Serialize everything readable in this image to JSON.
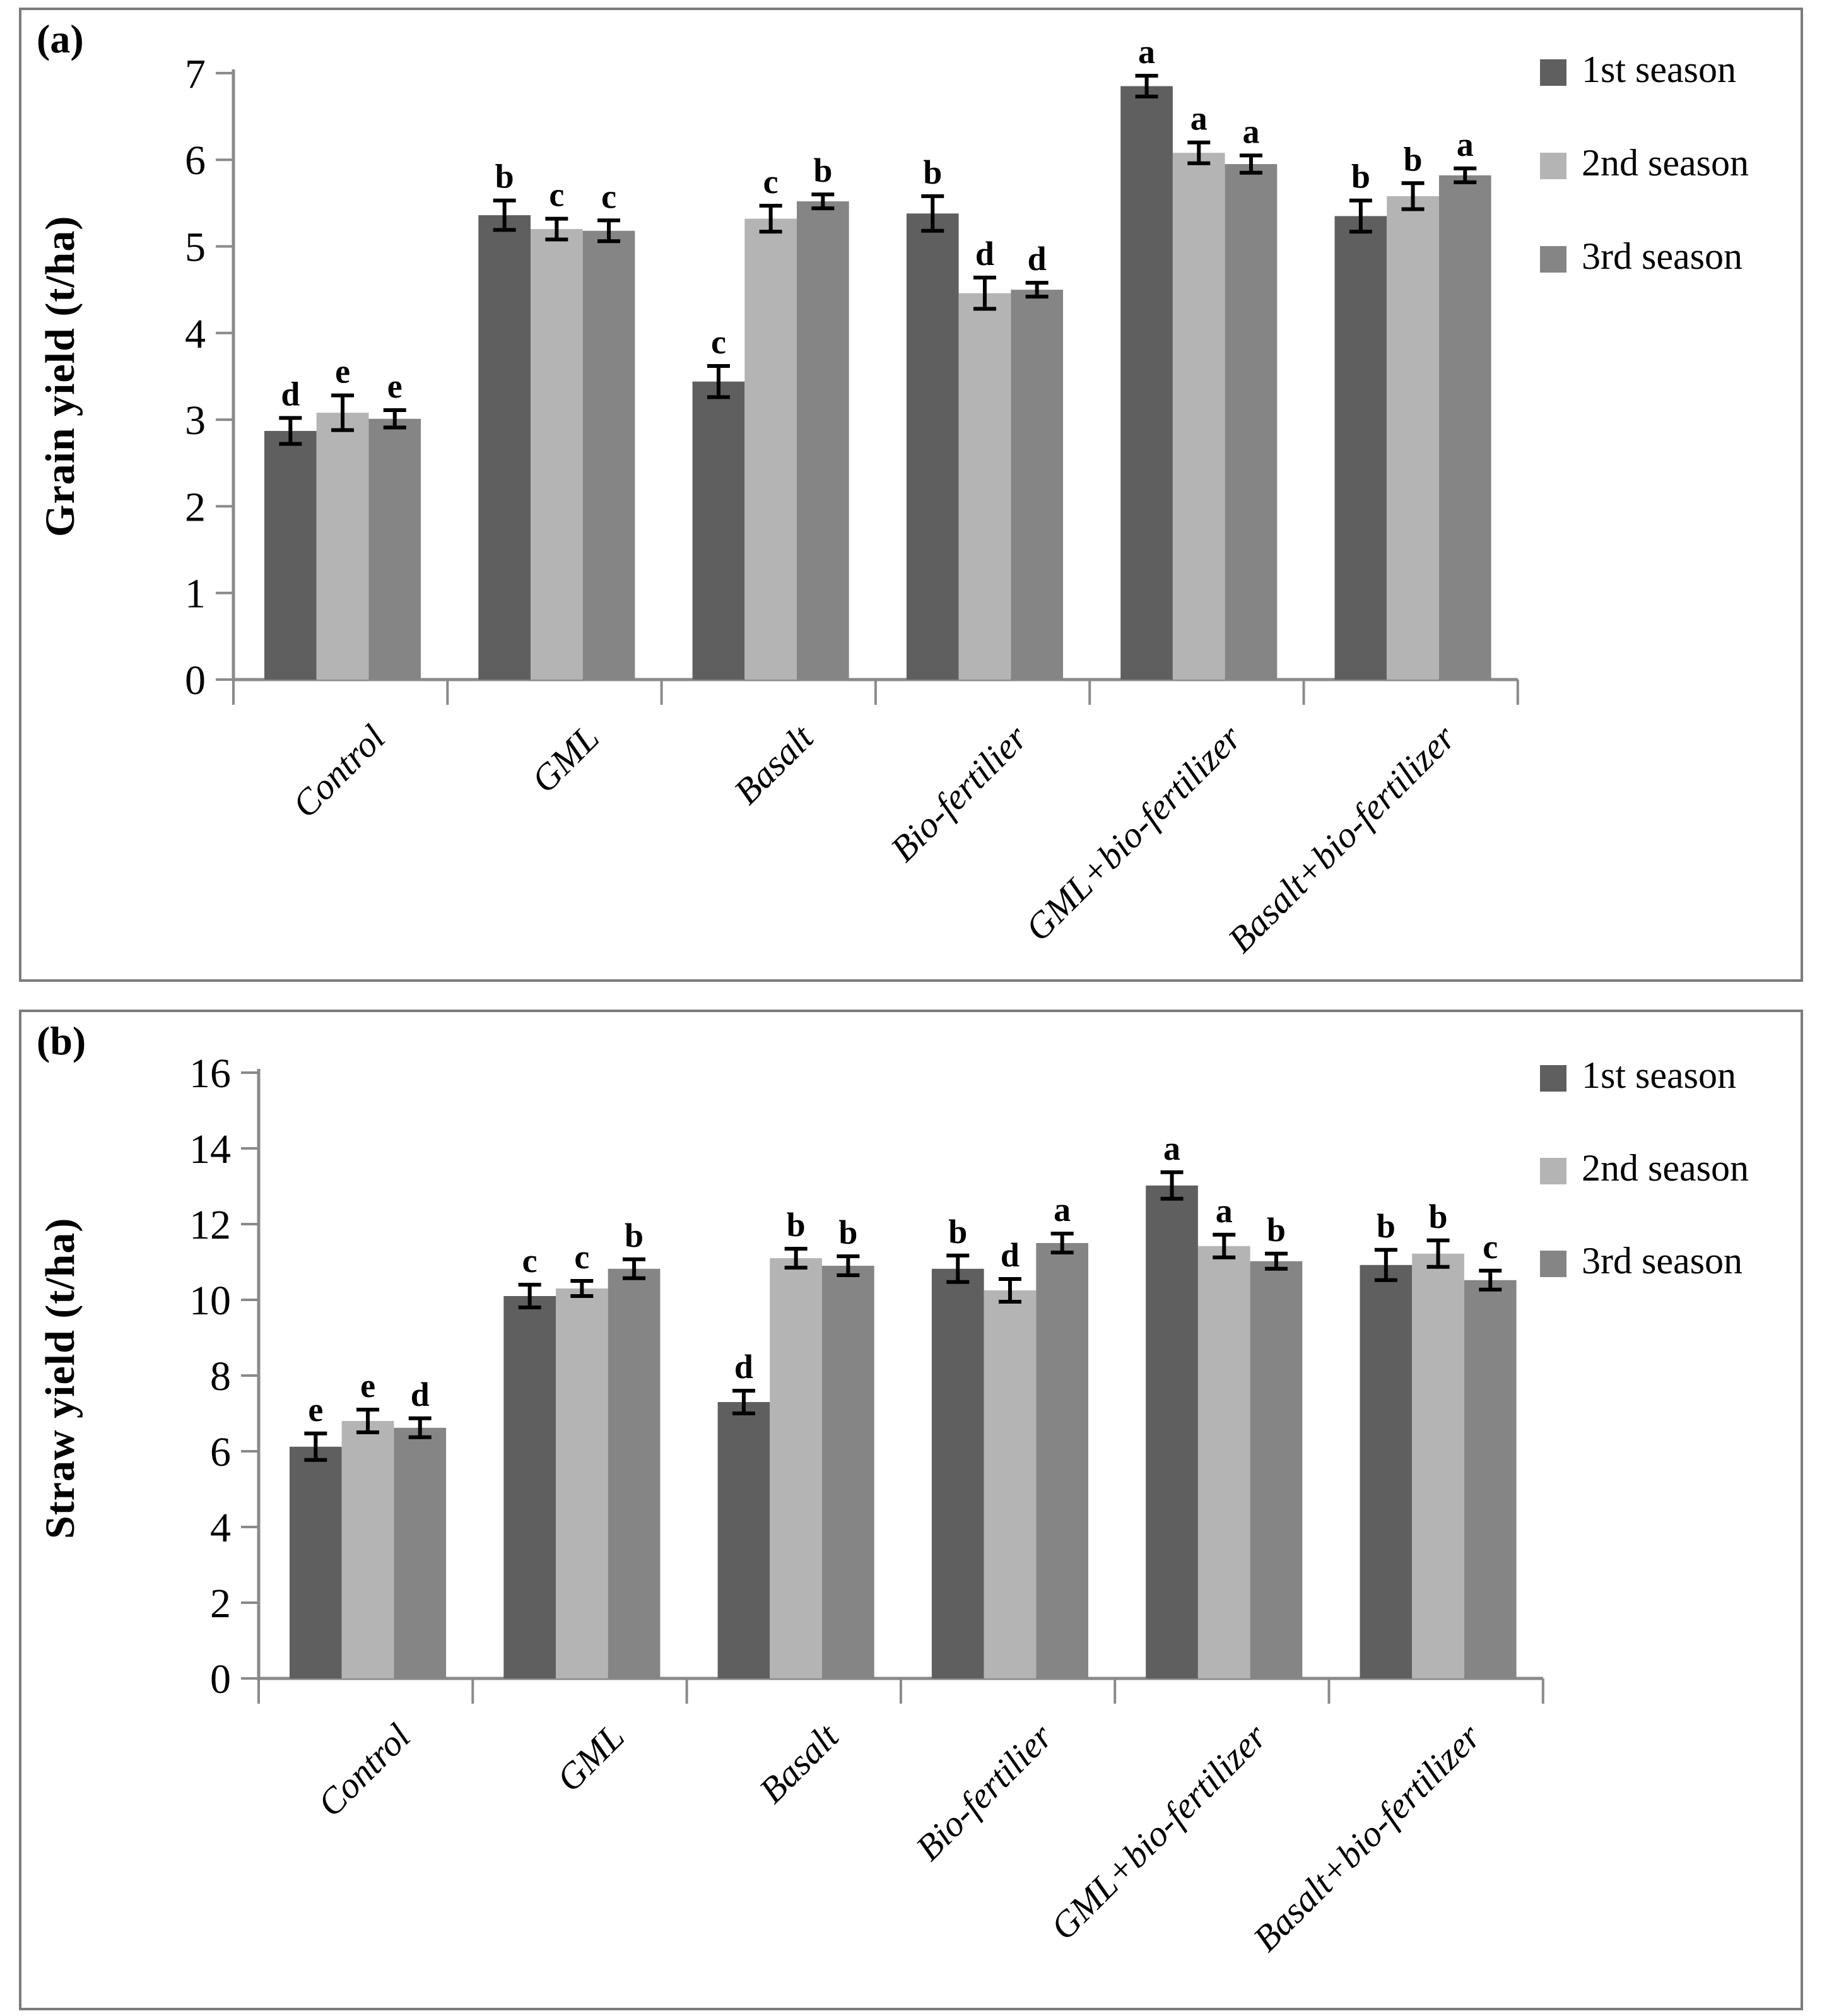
{
  "figure": {
    "panel_count": 2,
    "background": "#ffffff",
    "border_color": "#7b7b7b"
  },
  "chart_data": [
    {
      "type": "bar",
      "panel_label": "(a)",
      "title": "",
      "xlabel": "",
      "ylabel": "Grain yield (t/ha)",
      "ylim": [
        0,
        7
      ],
      "ytick_step": 1,
      "ytick_labels": [
        "0",
        "1",
        "2",
        "3",
        "4",
        "5",
        "6",
        "7"
      ],
      "grid": false,
      "legend_position": "top-right",
      "axis_color": "#8a8a8a",
      "error_bar_color": "#000000",
      "categories": [
        "Control",
        "GML",
        "Basalt",
        "Bio-fertilier",
        "GML+bio-fertilizer",
        "Basalt+bio-fertilizer"
      ],
      "series": [
        {
          "name": "1st season",
          "color": "#5f5f5f",
          "values": [
            2.87,
            5.36,
            3.44,
            5.38,
            6.85,
            5.35
          ],
          "errors": [
            0.15,
            0.17,
            0.18,
            0.2,
            0.12,
            0.18
          ],
          "letters": [
            "d",
            "b",
            "c",
            "b",
            "a",
            "b"
          ]
        },
        {
          "name": "2nd season",
          "color": "#b4b4b4",
          "values": [
            3.08,
            5.2,
            5.32,
            4.46,
            6.08,
            5.58
          ],
          "errors": [
            0.2,
            0.12,
            0.15,
            0.18,
            0.12,
            0.15
          ],
          "letters": [
            "e",
            "c",
            "c",
            "d",
            "a",
            "b"
          ]
        },
        {
          "name": "3rd season",
          "color": "#858585",
          "values": [
            3.01,
            5.18,
            5.52,
            4.5,
            5.95,
            5.82
          ],
          "errors": [
            0.1,
            0.12,
            0.08,
            0.08,
            0.1,
            0.08
          ],
          "letters": [
            "e",
            "c",
            "b",
            "d",
            "a",
            "a"
          ]
        }
      ]
    },
    {
      "type": "bar",
      "panel_label": "(b)",
      "title": "",
      "xlabel": "",
      "ylabel": "Straw yield (t/ha)",
      "ylim": [
        0,
        16
      ],
      "ytick_step": 2,
      "ytick_labels": [
        "0",
        "2",
        "4",
        "6",
        "8",
        "10",
        "12",
        "14",
        "16"
      ],
      "grid": false,
      "legend_position": "top-right",
      "axis_color": "#8a8a8a",
      "error_bar_color": "#000000",
      "categories": [
        "Control",
        "GML",
        "Basalt",
        "Bio-fertilier",
        "GML+bio-fertilizer",
        "Basalt+bio-fertilizer"
      ],
      "series": [
        {
          "name": "1st season",
          "color": "#5f5f5f",
          "values": [
            6.12,
            10.1,
            7.3,
            10.82,
            13.02,
            10.92
          ],
          "errors": [
            0.35,
            0.3,
            0.3,
            0.35,
            0.35,
            0.4
          ],
          "letters": [
            "e",
            "c",
            "d",
            "b",
            "a",
            "b"
          ]
        },
        {
          "name": "2nd season",
          "color": "#b4b4b4",
          "values": [
            6.8,
            10.3,
            11.1,
            10.25,
            11.42,
            11.22
          ],
          "errors": [
            0.3,
            0.2,
            0.25,
            0.3,
            0.3,
            0.35
          ],
          "letters": [
            "e",
            "c",
            "b",
            "d",
            "a",
            "b"
          ]
        },
        {
          "name": "3rd season",
          "color": "#858585",
          "values": [
            6.62,
            10.82,
            10.9,
            11.5,
            11.02,
            10.52
          ],
          "errors": [
            0.25,
            0.25,
            0.25,
            0.25,
            0.2,
            0.25
          ],
          "letters": [
            "d",
            "b",
            "b",
            "a",
            "b",
            "c"
          ]
        }
      ]
    }
  ]
}
